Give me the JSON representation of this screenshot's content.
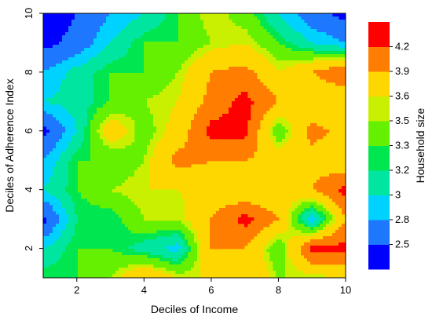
{
  "chart_data": {
    "type": "heatmap",
    "title": "",
    "xlabel": "Deciles of Income",
    "ylabel": "Deciles of Adherence Index",
    "xlim": [
      1,
      10
    ],
    "ylim": [
      1,
      10
    ],
    "x_ticks": [
      2,
      4,
      6,
      8,
      10
    ],
    "y_ticks": [
      2,
      4,
      6,
      8,
      10
    ],
    "grid": false,
    "legend": "right",
    "colorbar": {
      "label": "Household size",
      "tick_labels": [
        "2.5",
        "2.8",
        "3",
        "3.2",
        "3.3",
        "3.5",
        "3.6",
        "3.9",
        "4.2"
      ],
      "bands": [
        {
          "color": "#0000ff"
        },
        {
          "color": "#1e78ff"
        },
        {
          "color": "#00d2ff"
        },
        {
          "color": "#00e6a0"
        },
        {
          "color": "#00e650"
        },
        {
          "color": "#64f000"
        },
        {
          "color": "#c8f000"
        },
        {
          "color": "#ffd700"
        },
        {
          "color": "#ff7d00"
        },
        {
          "color": "#ff0000"
        }
      ]
    },
    "x": [
      1,
      2,
      3,
      4,
      5,
      6,
      7,
      8,
      9,
      10
    ],
    "y": [
      1,
      2,
      3,
      4,
      5,
      6,
      7,
      8,
      9,
      10
    ],
    "z": [
      [
        3.3,
        3.3,
        3.5,
        3.9,
        3.6,
        3.6,
        3.9,
        3.5,
        3.5,
        3.6
      ],
      [
        3.0,
        3.3,
        3.3,
        3.1,
        2.9,
        3.9,
        3.9,
        3.3,
        4.3,
        4.3
      ],
      [
        2.4,
        3.2,
        3.2,
        3.5,
        3.5,
        3.9,
        4.3,
        3.9,
        2.8,
        3.9
      ],
      [
        3.0,
        3.3,
        3.5,
        3.6,
        3.6,
        3.7,
        3.6,
        3.6,
        3.9,
        4.3
      ],
      [
        2.8,
        3.3,
        3.3,
        3.5,
        4.0,
        3.9,
        3.9,
        3.8,
        3.8,
        3.6
      ],
      [
        2.4,
        3.0,
        3.8,
        3.4,
        3.7,
        4.3,
        4.3,
        3.3,
        4.0,
        3.8
      ],
      [
        3.0,
        3.1,
        3.3,
        3.5,
        3.6,
        4.0,
        4.3,
        3.9,
        3.6,
        3.6
      ],
      [
        2.8,
        3.1,
        3.3,
        3.3,
        3.5,
        3.9,
        4.0,
        3.6,
        3.9,
        4.2
      ],
      [
        2.4,
        2.6,
        3.0,
        3.3,
        3.3,
        3.5,
        3.6,
        3.3,
        3.0,
        2.8
      ],
      [
        2.3,
        2.5,
        2.8,
        3.0,
        3.3,
        3.6,
        3.4,
        3.0,
        2.6,
        2.4
      ]
    ]
  }
}
